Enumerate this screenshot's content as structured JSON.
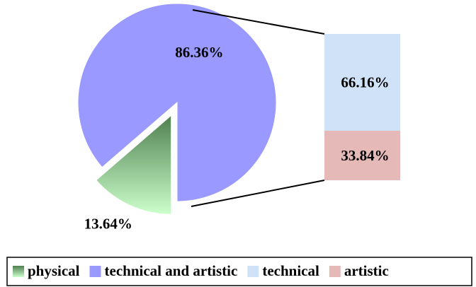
{
  "chart_data": {
    "type": "pie",
    "categories": [
      "physical",
      "technical and artistic"
    ],
    "values": [
      13.64,
      86.36
    ],
    "value_labels": [
      "13.64%",
      "86.36%"
    ],
    "colors": [
      "#4f7f4f",
      "#9999ff"
    ],
    "exploded": [
      true,
      false
    ],
    "breakdown": {
      "type": "bar",
      "categories": [
        "technical",
        "artistic"
      ],
      "values": [
        66.16,
        33.84
      ],
      "value_labels": [
        "66.16%",
        "33.84%"
      ],
      "colors": [
        "#cfe2f7",
        "#e6b9b9"
      ]
    },
    "legend": "bottom"
  }
}
